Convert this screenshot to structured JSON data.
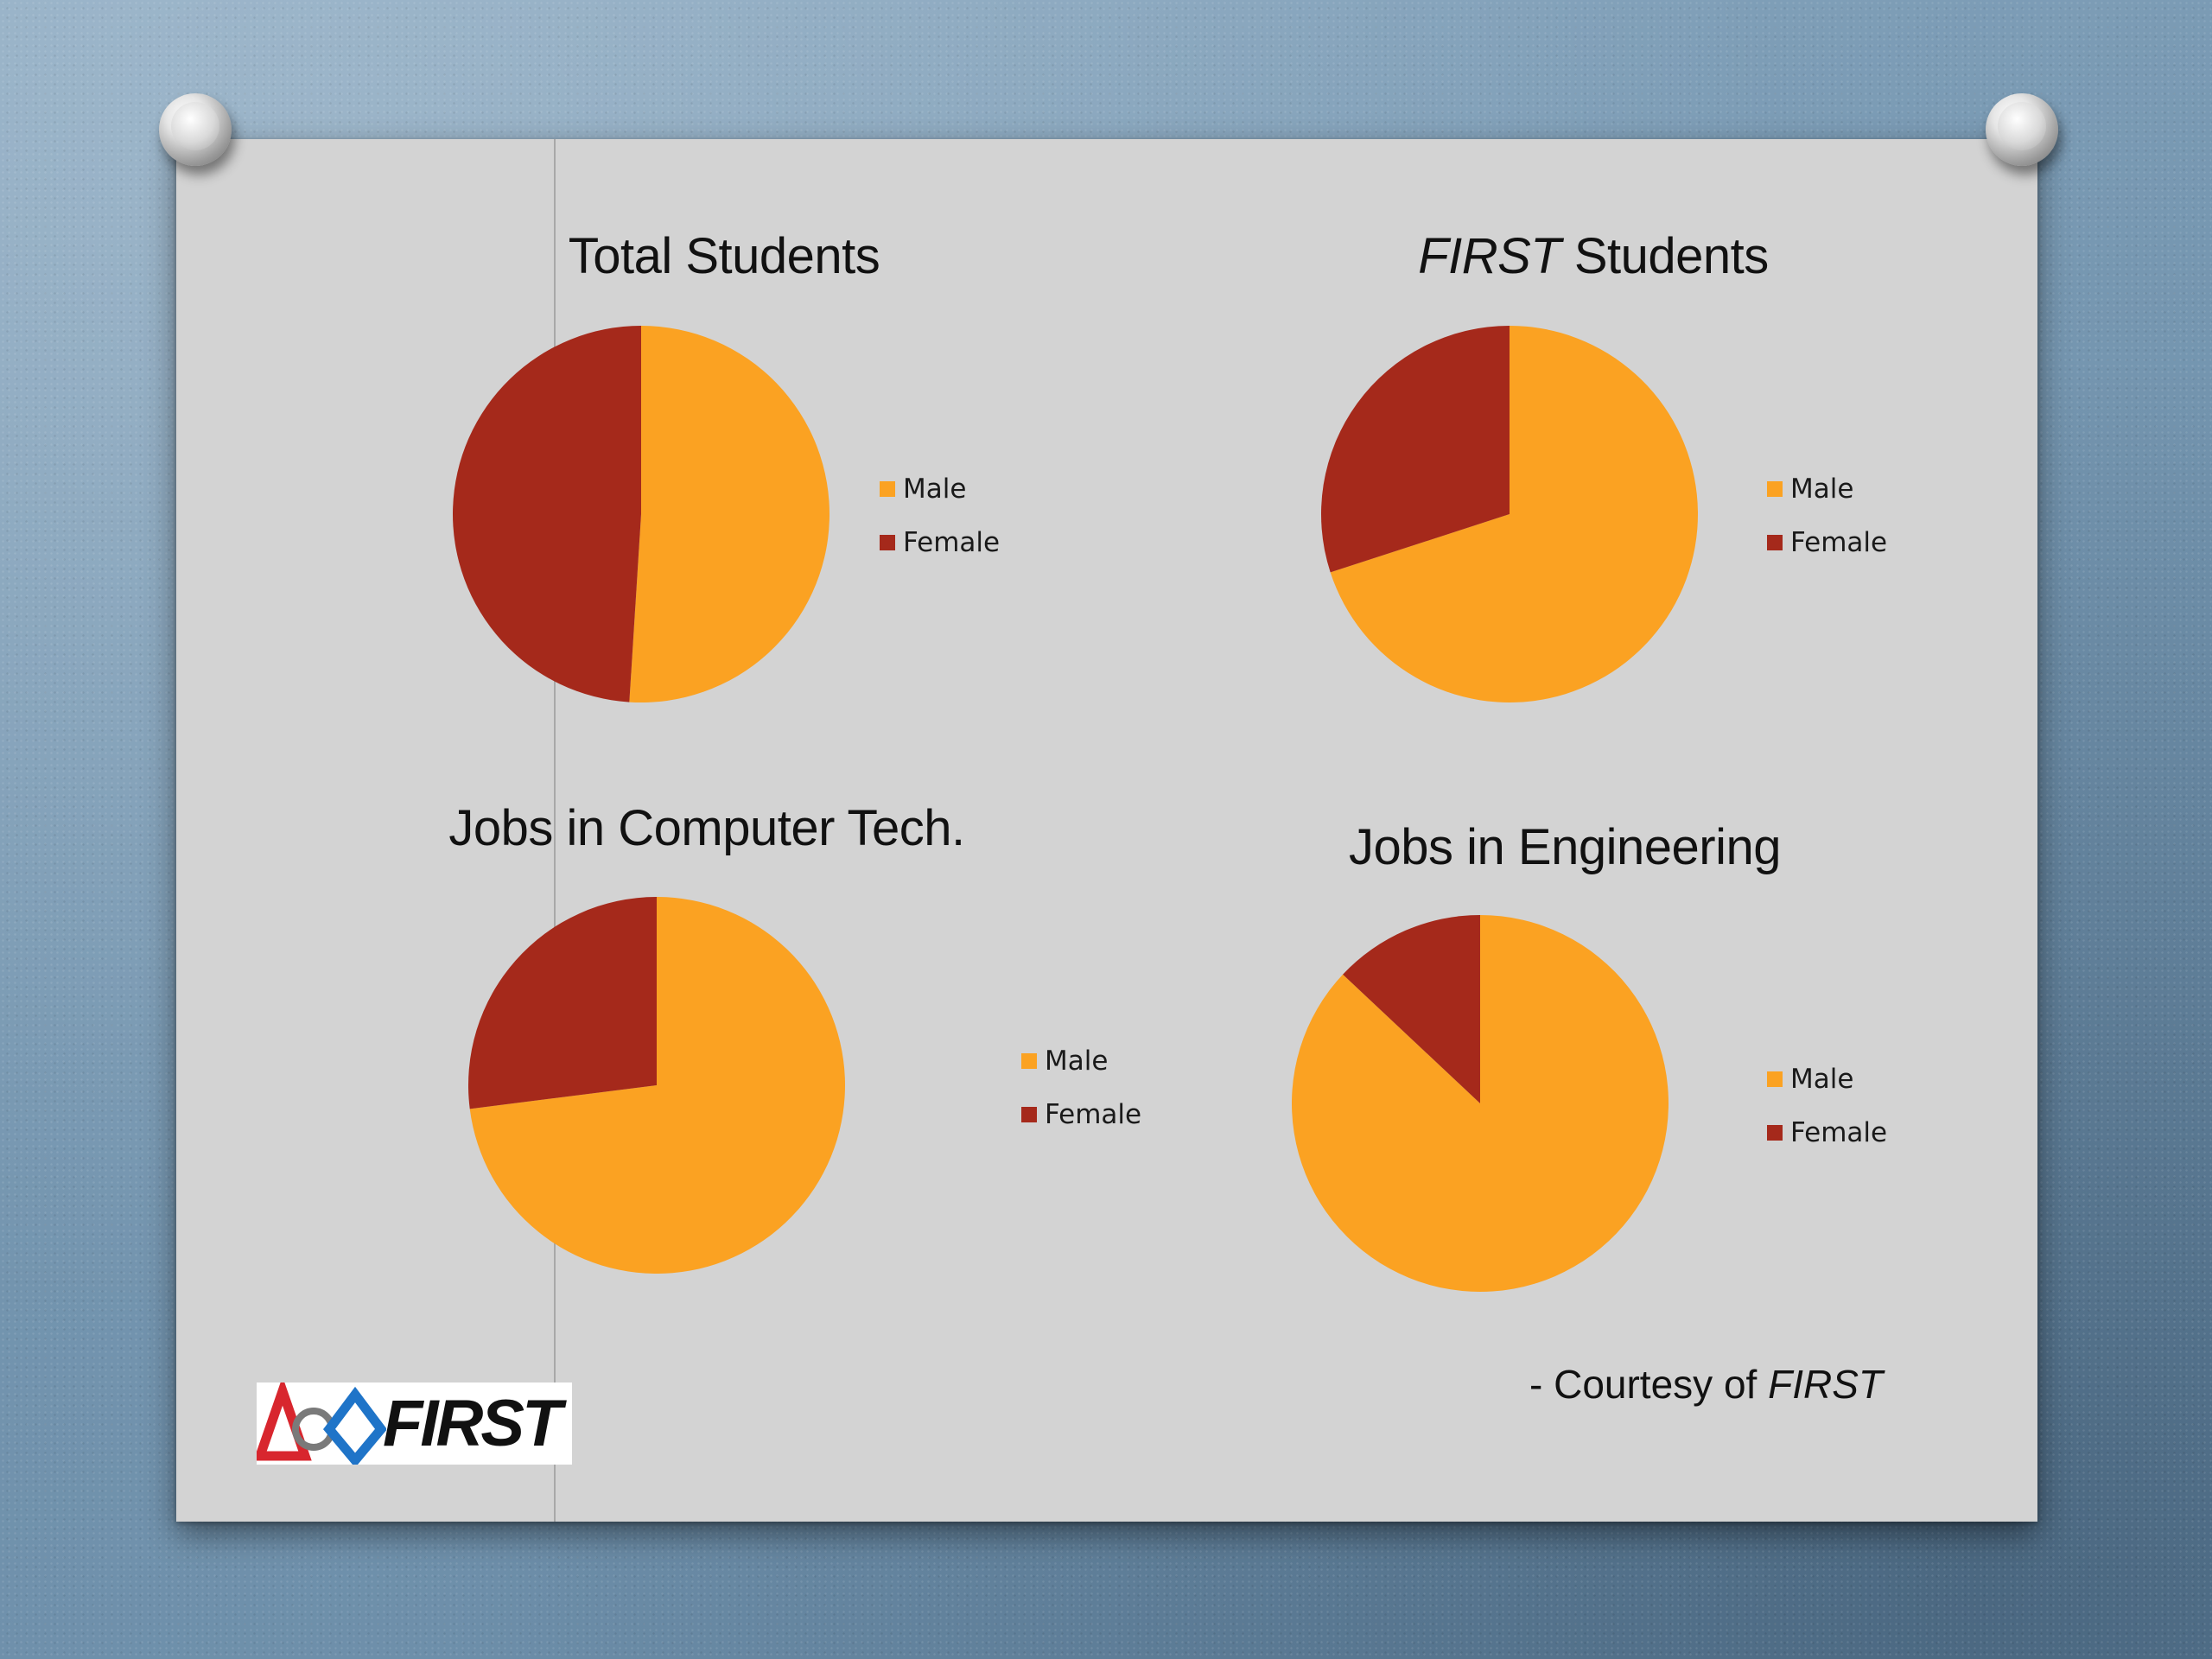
{
  "colors": {
    "male": "#fba222",
    "female": "#a5291b",
    "slide": "#d3d3d3"
  },
  "chart_data": [
    {
      "type": "pie",
      "title": "Total Students",
      "categories": [
        "Male",
        "Female"
      ],
      "values": [
        51,
        49
      ],
      "legend": "right"
    },
    {
      "type": "pie",
      "title_italic": "FIRST",
      "title": " Students",
      "categories": [
        "Male",
        "Female"
      ],
      "values": [
        70,
        30
      ],
      "legend": "right"
    },
    {
      "type": "pie",
      "title": "Jobs in Computer Tech.",
      "categories": [
        "Male",
        "Female"
      ],
      "values": [
        73,
        27
      ],
      "legend": "right"
    },
    {
      "type": "pie",
      "title": "Jobs in Engineering",
      "categories": [
        "Male",
        "Female"
      ],
      "values": [
        87,
        13
      ],
      "legend": "right"
    }
  ],
  "footer": {
    "courtesy_prefix": "- Courtesy of ",
    "courtesy_source": "FIRST"
  },
  "logo": {
    "wordmark": "FIRST"
  }
}
